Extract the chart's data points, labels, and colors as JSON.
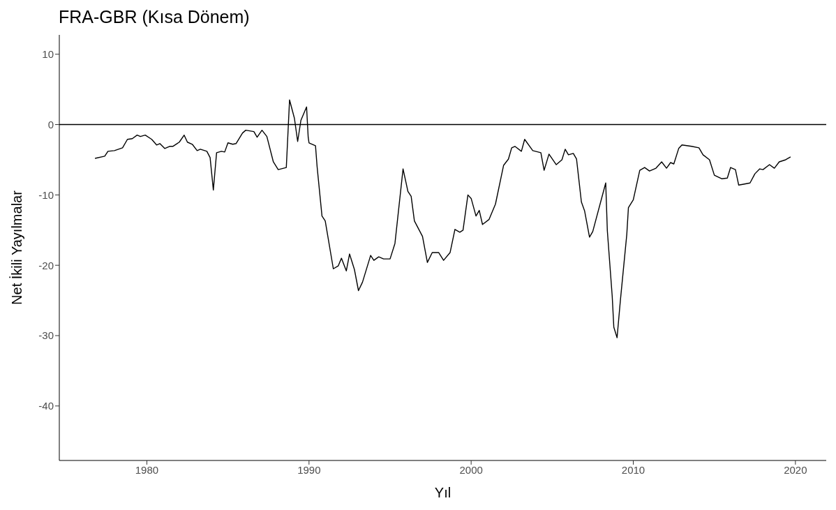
{
  "chart_data": {
    "type": "line",
    "title": "FRA-GBR (Kısa Dönem)",
    "xlabel": "Yıl",
    "ylabel": "Net İkili Yayılmalar",
    "x": [
      1976.8,
      1977.4,
      1977.6,
      1978.0,
      1978.5,
      1978.8,
      1979.1,
      1979.4,
      1979.6,
      1979.9,
      1980.3,
      1980.6,
      1980.8,
      1981.1,
      1981.4,
      1981.6,
      1982.0,
      1982.3,
      1982.5,
      1982.8,
      1983.1,
      1983.3,
      1983.7,
      1983.9,
      1984.1,
      1984.3,
      1984.6,
      1984.8,
      1985.0,
      1985.3,
      1985.5,
      1985.9,
      1986.1,
      1986.6,
      1986.8,
      1987.1,
      1987.4,
      1987.8,
      1988.1,
      1988.6,
      1988.7,
      1988.8,
      1989.1,
      1989.3,
      1989.5,
      1989.85,
      1989.95,
      1990.0,
      1990.4,
      1990.5,
      1990.8,
      1991.0,
      1991.5,
      1991.8,
      1992.0,
      1992.3,
      1992.5,
      1992.8,
      1993.05,
      1993.3,
      1993.8,
      1994.0,
      1994.3,
      1994.6,
      1995.0,
      1995.3,
      1995.8,
      1996.1,
      1996.3,
      1996.5,
      1997.0,
      1997.3,
      1997.6,
      1998.0,
      1998.3,
      1998.7,
      1999.0,
      1999.3,
      1999.5,
      1999.8,
      2000.0,
      2000.3,
      2000.5,
      2000.7,
      2001.1,
      2001.5,
      2002.0,
      2002.3,
      2002.5,
      2002.7,
      2003.1,
      2003.3,
      2003.8,
      2004.3,
      2004.5,
      2004.8,
      2005.25,
      2005.6,
      2005.8,
      2006.0,
      2006.3,
      2006.5,
      2006.8,
      2007.0,
      2007.3,
      2007.5,
      2008.3,
      2008.4,
      2008.7,
      2008.8,
      2009.0,
      2009.2,
      2009.6,
      2009.7,
      2010.0,
      2010.4,
      2010.7,
      2011.0,
      2011.4,
      2011.75,
      2012.05,
      2012.3,
      2012.5,
      2012.8,
      2013.0,
      2013.6,
      2014.05,
      2014.3,
      2014.7,
      2015.0,
      2015.45,
      2015.8,
      2016.0,
      2016.3,
      2016.5,
      2016.75,
      2017.2,
      2017.5,
      2017.8,
      2018.0,
      2018.4,
      2018.7,
      2019.0,
      2019.4,
      2019.7
    ],
    "series": [
      {
        "color": "#000000",
        "values": [
          -4.8,
          -4.5,
          -3.8,
          -3.7,
          -3.3,
          -2.1,
          -2.0,
          -1.5,
          -1.7,
          -1.5,
          -2.1,
          -2.9,
          -2.7,
          -3.4,
          -3.1,
          -3.1,
          -2.5,
          -1.5,
          -2.5,
          -2.8,
          -3.7,
          -3.5,
          -3.8,
          -4.7,
          -9.3,
          -4.0,
          -3.8,
          -3.9,
          -2.6,
          -2.8,
          -2.7,
          -1.2,
          -0.8,
          -1.0,
          -1.8,
          -0.8,
          -1.7,
          -5.3,
          -6.4,
          -6.1,
          -1.3,
          3.5,
          0.9,
          -2.4,
          0.6,
          2.5,
          -1.8,
          -2.6,
          -3.0,
          -6.0,
          -13.0,
          -13.7,
          -20.5,
          -20.1,
          -19.0,
          -20.8,
          -18.4,
          -20.6,
          -23.6,
          -22.4,
          -18.6,
          -19.3,
          -18.8,
          -19.1,
          -19.1,
          -16.9,
          -6.3,
          -9.5,
          -10.2,
          -13.7,
          -15.9,
          -19.6,
          -18.2,
          -18.2,
          -19.3,
          -18.2,
          -14.9,
          -15.3,
          -15.0,
          -10.0,
          -10.5,
          -13.0,
          -12.2,
          -14.2,
          -13.5,
          -11.3,
          -5.8,
          -4.9,
          -3.3,
          -3.1,
          -3.8,
          -2.1,
          -3.7,
          -4.0,
          -6.5,
          -4.2,
          -5.7,
          -5.0,
          -3.5,
          -4.3,
          -4.1,
          -4.9,
          -11.0,
          -12.3,
          -16.0,
          -15.2,
          -8.3,
          -15.1,
          -24.4,
          -28.8,
          -30.3,
          -25.1,
          -15.6,
          -11.8,
          -10.7,
          -6.5,
          -6.1,
          -6.6,
          -6.2,
          -5.3,
          -6.2,
          -5.4,
          -5.6,
          -3.4,
          -2.9,
          -3.1,
          -3.3,
          -4.3,
          -5.0,
          -7.2,
          -7.7,
          -7.6,
          -6.1,
          -6.4,
          -8.6,
          -8.5,
          -8.3,
          -7.0,
          -6.3,
          -6.4,
          -5.7,
          -6.2,
          -5.3,
          -5.0,
          -4.6
        ]
      }
    ],
    "xlim": [
      1974.6,
      2021.9
    ],
    "xticks": [
      1980,
      1990,
      2000,
      2010,
      2020
    ],
    "ylim": [
      -47.75,
      12.75
    ],
    "yticks": [
      -40,
      -30,
      -20,
      -10,
      0,
      10
    ],
    "ref_lines": [
      {
        "axis": "y",
        "value": 0,
        "color": "#000000"
      }
    ],
    "grid": false,
    "legend": false,
    "marker": "none",
    "line_style": "solid"
  }
}
